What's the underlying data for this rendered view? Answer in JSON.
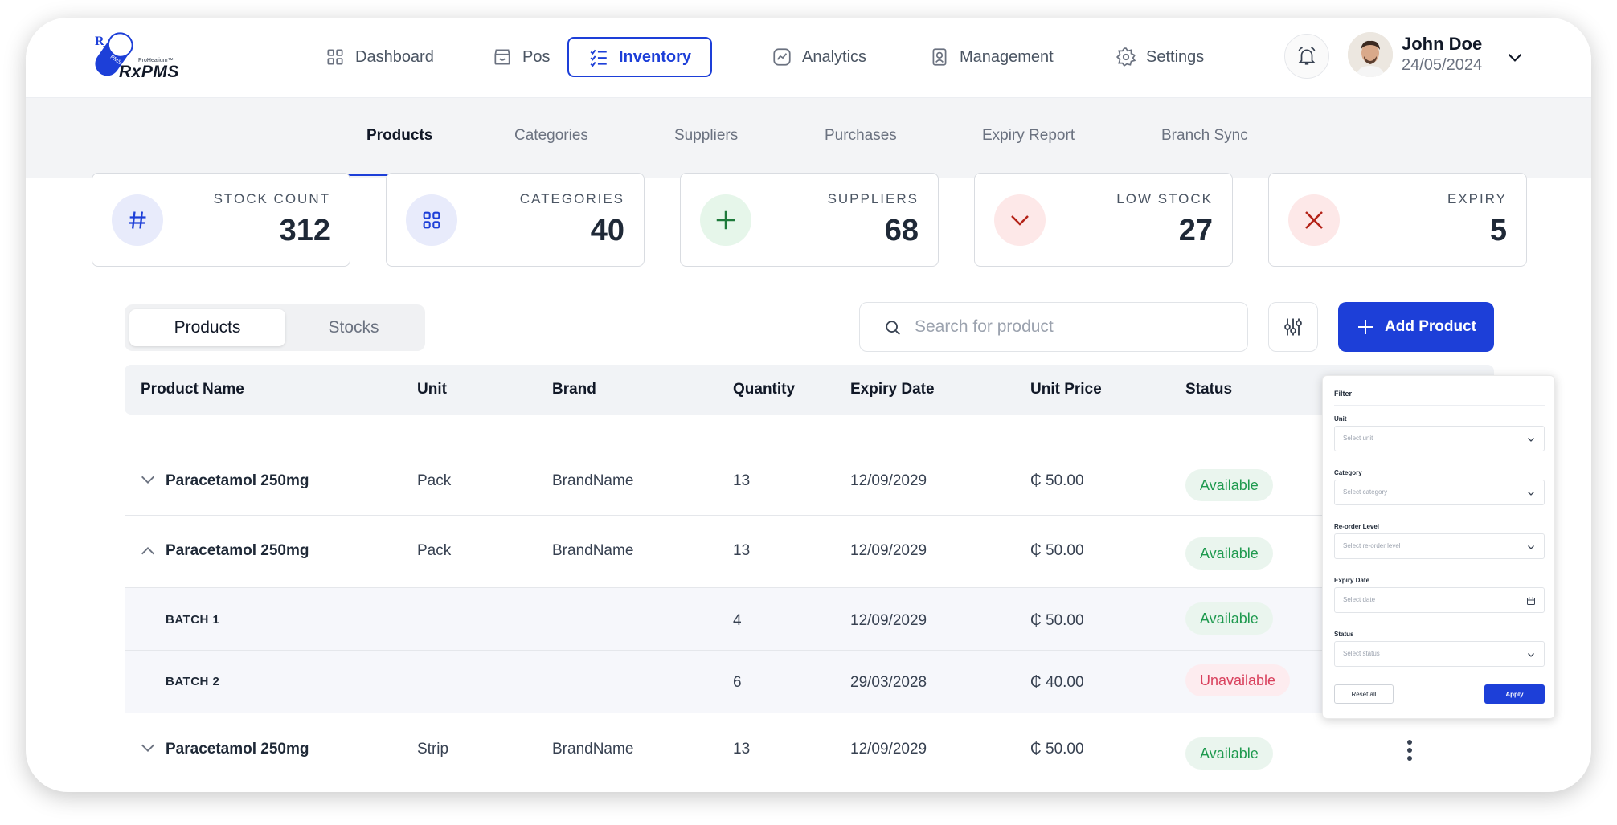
{
  "app": {
    "logo_text": "RxPMS",
    "logo_sub": "ProHealium™",
    "logo_badge_text": "PMS"
  },
  "nav": {
    "items": [
      {
        "label": "Dashboard",
        "icon": "grid-icon"
      },
      {
        "label": "Pos",
        "icon": "store-icon"
      },
      {
        "label": "Inventory",
        "icon": "checklist-icon",
        "active": true
      },
      {
        "label": "Analytics",
        "icon": "chart-icon"
      },
      {
        "label": "Management",
        "icon": "management-icon"
      },
      {
        "label": "Settings",
        "icon": "gear-icon"
      }
    ],
    "accent": "#1d3fd8"
  },
  "user": {
    "name": "John Doe",
    "date": "24/05/2024"
  },
  "subtabs": [
    "Products",
    "Categories",
    "Suppliers",
    "Purchases",
    "Expiry Report",
    "Branch Sync"
  ],
  "stats": [
    {
      "label": "Stock Count",
      "value": "312",
      "icon": "hash-icon",
      "color": "#e8ebfb"
    },
    {
      "label": "Categories",
      "value": "40",
      "icon": "grid-icon",
      "color": "#e8ebfb"
    },
    {
      "label": "Suppliers",
      "value": "68",
      "icon": "plus-icon",
      "color": "#e6f6ea"
    },
    {
      "label": "Low Stock",
      "value": "27",
      "icon": "chevron-down-icon",
      "color": "#fde8e8"
    },
    {
      "label": "Expiry",
      "value": "5",
      "icon": "x-icon",
      "color": "#fde8e8"
    }
  ],
  "toggle": {
    "products": "Products",
    "stocks": "Stocks"
  },
  "search": {
    "placeholder": "Search for product"
  },
  "add_button": "Add Product",
  "table": {
    "headers": [
      "Product Name",
      "Unit",
      "Brand",
      "Quantity",
      "Expiry Date",
      "Unit Price",
      "Status"
    ],
    "rows": [
      {
        "name": "Paracetamol 250mg",
        "unit": "Pack",
        "brand": "BrandName",
        "quantity": "13",
        "expiry": "12/09/2029",
        "price": "₵ 50.00",
        "status": "Available"
      },
      {
        "name": "Paracetamol 250mg",
        "unit": "Pack",
        "brand": "BrandName",
        "quantity": "13",
        "expiry": "12/09/2029",
        "price": "₵ 50.00",
        "status": "Available"
      },
      {
        "name": "BATCH 1",
        "quantity": "4",
        "expiry": "12/09/2029",
        "price": "₵ 50.00",
        "status": "Available"
      },
      {
        "name": "BATCH 2",
        "quantity": "6",
        "expiry": "29/03/2028",
        "price": "₵ 40.00",
        "status": "Unavailable"
      },
      {
        "name": "Paracetamol 250mg",
        "unit": "Strip",
        "brand": "BrandName",
        "quantity": "13",
        "expiry": "12/09/2029",
        "price": "₵ 50.00",
        "status": "Available"
      }
    ]
  },
  "filter": {
    "title": "Filter",
    "fields": [
      {
        "label": "Unit",
        "placeholder": "Select unit"
      },
      {
        "label": "Category",
        "placeholder": "Select category"
      },
      {
        "label": "Re-order Level",
        "placeholder": "Select re-order level"
      },
      {
        "label": "Expiry Date",
        "placeholder": "Select date"
      },
      {
        "label": "Status",
        "placeholder": "Select status"
      }
    ],
    "reset": "Reset all",
    "apply": "Apply"
  }
}
